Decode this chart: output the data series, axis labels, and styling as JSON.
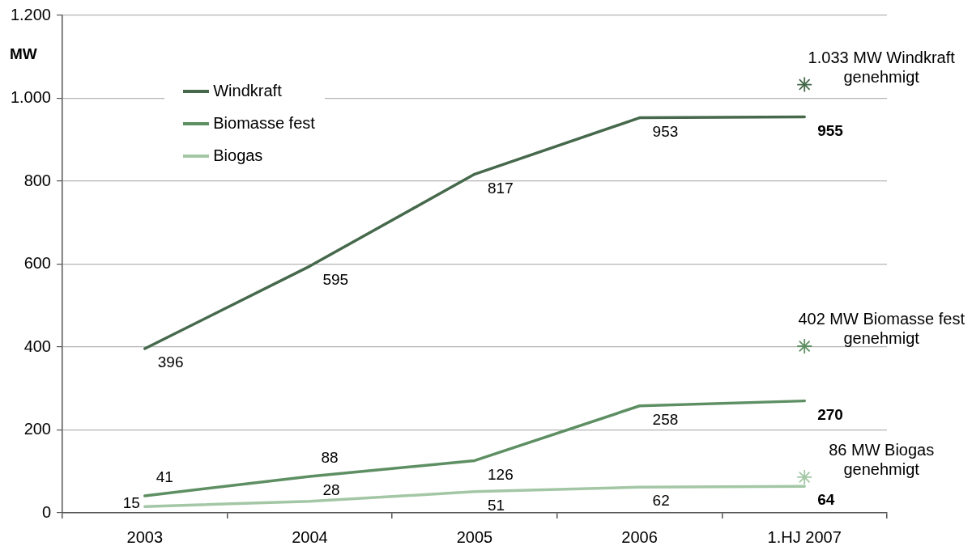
{
  "chart_data": {
    "type": "line",
    "ylabel": "MW",
    "categories": [
      "2003",
      "2004",
      "2005",
      "2006",
      "1.HJ 2007"
    ],
    "series": [
      {
        "name": "Windkraft",
        "color": "#46694c",
        "values": [
          396,
          595,
          817,
          953,
          955
        ],
        "value_labels": [
          "396",
          "595",
          "817",
          "953",
          "955"
        ]
      },
      {
        "name": "Biomasse fest",
        "color": "#5d8f63",
        "values": [
          41,
          88,
          126,
          258,
          270
        ],
        "value_labels": [
          "41",
          "88",
          "126",
          "258",
          "270"
        ]
      },
      {
        "name": "Biogas",
        "color": "#a3c7a5",
        "values": [
          15,
          28,
          51,
          62,
          64
        ],
        "value_labels": [
          "15",
          "28",
          "51",
          "62",
          "64"
        ]
      },
      {
        "type": "scatter",
        "color": "#46694c",
        "marker": "cross",
        "values": [
          null,
          null,
          null,
          null,
          1033
        ]
      },
      {
        "type": "scatter",
        "color": "#5d8f63",
        "marker": "cross",
        "values": [
          null,
          null,
          null,
          null,
          402
        ]
      },
      {
        "type": "scatter",
        "color": "#a3c7a5",
        "marker": "cross",
        "values": [
          null,
          null,
          null,
          null,
          86
        ]
      }
    ],
    "annotations": [
      {
        "text": "1.033 MW Windkraft genehmigt",
        "x": "1.HJ 2007",
        "y": 1033
      },
      {
        "text": "402 MW Biomasse fest genehmigt",
        "x": "1.HJ 2007",
        "y": 402
      },
      {
        "text": "86 MW Biogas genehmigt",
        "x": "1.HJ 2007",
        "y": 86
      }
    ],
    "ylim": [
      0,
      1200
    ],
    "yticks": [
      0,
      200,
      400,
      600,
      800,
      {
        "value": 1000,
        "label": "1.000"
      },
      {
        "value": 1200,
        "label": "1.200"
      }
    ],
    "grid": "y",
    "legend": "top left",
    "marker": "none"
  }
}
